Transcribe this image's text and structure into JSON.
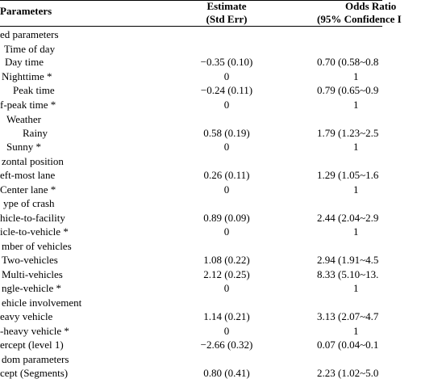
{
  "header": {
    "parameters": "Parameters",
    "estimate_line1": "Estimate",
    "estimate_line2": "(Std Err)",
    "or_line1": "Odds Ratio",
    "or_line2": "(95% Confidence I"
  },
  "rows": [
    {
      "param": "ed parameters",
      "estimate": "",
      "or": ""
    },
    {
      "param": "Time of day",
      "estimate": "",
      "or": ""
    },
    {
      "param": "Day time",
      "estimate": "−0.35 (0.10)",
      "or": "0.70 (0.58~0.8"
    },
    {
      "param": "Nighttime *",
      "estimate": "0",
      "or": "1"
    },
    {
      "param": "Peak time",
      "estimate": "−0.24 (0.11)",
      "or": "0.79 (0.65~0.9"
    },
    {
      "param": "f-peak time *",
      "estimate": "0",
      "or": "1"
    },
    {
      "param": "Weather",
      "estimate": "",
      "or": ""
    },
    {
      "param": "Rainy",
      "estimate": "0.58 (0.19)",
      "or": "1.79 (1.23~2.5"
    },
    {
      "param": "Sunny *",
      "estimate": "0",
      "or": "1"
    },
    {
      "param": "zontal position",
      "estimate": "",
      "or": ""
    },
    {
      "param": "eft-most lane",
      "estimate": "0.26 (0.11)",
      "or": "1.29 (1.05~1.6"
    },
    {
      "param": "Center lane *",
      "estimate": "0",
      "or": "1"
    },
    {
      "param": "ype of crash",
      "estimate": "",
      "or": ""
    },
    {
      "param": "hicle-to-facility",
      "estimate": "0.89 (0.09)",
      "or": "2.44 (2.04~2.9"
    },
    {
      "param": "icle-to-vehicle *",
      "estimate": "0",
      "or": "1"
    },
    {
      "param": "mber of vehicles",
      "estimate": "",
      "or": ""
    },
    {
      "param": "Two-vehicles",
      "estimate": "1.08 (0.22)",
      "or": "2.94 (1.91~4.5"
    },
    {
      "param": "Multi-vehicles",
      "estimate": "2.12 (0.25)",
      "or": "8.33 (5.10~13."
    },
    {
      "param": "ngle-vehicle *",
      "estimate": "0",
      "or": "1"
    },
    {
      "param": "ehicle involvement",
      "estimate": "",
      "or": ""
    },
    {
      "param": "eavy vehicle",
      "estimate": "1.14 (0.21)",
      "or": "3.13 (2.07~4.7"
    },
    {
      "param": "-heavy vehicle *",
      "estimate": "0",
      "or": "1"
    },
    {
      "param": "ercept (level 1)",
      "estimate": "−2.66 (0.32)",
      "or": "0.07 (0.04~0.1"
    },
    {
      "param": "dom parameters",
      "estimate": "",
      "or": ""
    },
    {
      "param": "cept (Segments)",
      "estimate": "0.80 (0.41)",
      "or": "2.23 (1.02~5.0"
    }
  ]
}
